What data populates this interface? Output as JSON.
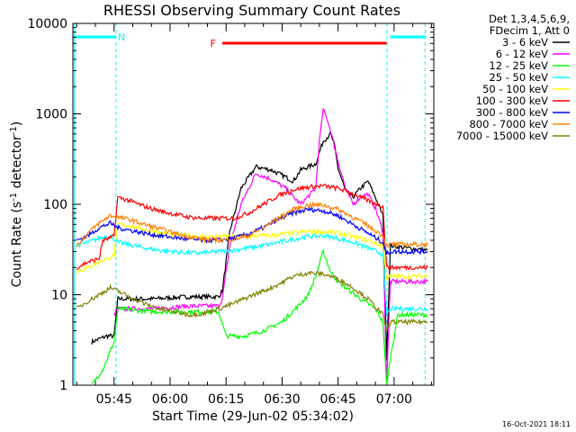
{
  "chart_data": {
    "type": "line",
    "title": "RHESSI Observing Summary Count Rates",
    "xlabel": "Start Time (29-Jun-02 05:34:02)",
    "ylabel_main": "Count Rate (s",
    "ylabel_sup1": "-1",
    "ylabel_mid": " detector",
    "ylabel_sup2": "-1",
    "ylabel_end": ")",
    "yscale": "log",
    "ylim": [
      1,
      10000
    ],
    "xlim_minutes": [
      -1.03,
      95.63
    ],
    "x_minutes_unit": "minutes after 05:35",
    "x_ticks": [
      {
        "label": "05:45",
        "t": 10
      },
      {
        "label": "06:00",
        "t": 25
      },
      {
        "label": "06:15",
        "t": 40
      },
      {
        "label": "06:30",
        "t": 55
      },
      {
        "label": "06:45",
        "t": 70
      },
      {
        "label": "07:00",
        "t": 85
      }
    ],
    "y_ticks": [
      {
        "label": "1",
        "v": 1
      },
      {
        "label": "10",
        "v": 10
      },
      {
        "label": "100",
        "v": 100
      },
      {
        "label": "1000",
        "v": 1000
      },
      {
        "label": "10000",
        "v": 10000
      }
    ],
    "legend_header": [
      "Det 1,3,4,5,6,9,",
      "FDecim 1, Att 0"
    ],
    "series": [
      {
        "name": "3 - 6 keV",
        "color": "#000000",
        "x": [
          4,
          8,
          10,
          11,
          20,
          30,
          38,
          39,
          41,
          44,
          48,
          52,
          56,
          58,
          60,
          64,
          66,
          68,
          69,
          70,
          72,
          74,
          76,
          78,
          80,
          82,
          83,
          84,
          88,
          94
        ],
        "y": [
          3,
          3.5,
          3.5,
          9,
          9,
          9.5,
          9.5,
          11,
          50,
          150,
          260,
          240,
          200,
          180,
          240,
          280,
          500,
          600,
          450,
          250,
          140,
          120,
          150,
          180,
          120,
          75,
          2,
          35,
          33,
          31
        ]
      },
      {
        "name": "6 - 12 keV",
        "color": "#ff00ff",
        "x": [
          10,
          11,
          20,
          30,
          38,
          39,
          41,
          44,
          48,
          52,
          56,
          58,
          60,
          64,
          65,
          66,
          67,
          68,
          70,
          72,
          74,
          76,
          78,
          80,
          82,
          83,
          84,
          88,
          94
        ],
        "y": [
          6,
          7,
          7,
          7.5,
          7.5,
          9,
          35,
          100,
          220,
          190,
          150,
          120,
          100,
          150,
          500,
          1100,
          900,
          650,
          300,
          150,
          100,
          120,
          130,
          90,
          50,
          1,
          14,
          14,
          14
        ]
      },
      {
        "name": "12 - 25 keV",
        "color": "#00ff00",
        "x": [
          4,
          7,
          10,
          11,
          20,
          30,
          38,
          40,
          45,
          50,
          55,
          60,
          62,
          64,
          66,
          68,
          70,
          72,
          76,
          80,
          82,
          83,
          84,
          86,
          88,
          94
        ],
        "y": [
          1,
          1.5,
          3,
          7,
          6.5,
          6.5,
          6.5,
          3.5,
          3.5,
          4,
          5,
          8,
          10,
          16,
          30,
          18,
          14,
          12,
          9,
          7,
          5,
          1,
          2,
          6,
          6,
          6
        ]
      },
      {
        "name": "25 - 50 keV",
        "color": "#00ffff",
        "x": [
          0,
          3,
          6,
          9,
          11,
          14,
          18,
          22,
          26,
          30,
          34,
          38,
          42,
          46,
          50,
          54,
          58,
          62,
          66,
          70,
          74,
          78,
          82,
          83,
          84,
          88,
          94
        ],
        "y": [
          35,
          38,
          42,
          45,
          38,
          36,
          33,
          31,
          30,
          29,
          29,
          30,
          31,
          33,
          35,
          38,
          41,
          44,
          45,
          42,
          38,
          33,
          28,
          6,
          7,
          7,
          7
        ]
      },
      {
        "name": "50 - 100 keV",
        "color": "#ffff00",
        "x": [
          0,
          3,
          6,
          9,
          10,
          11,
          14,
          18,
          22,
          26,
          30,
          34,
          38,
          42,
          46,
          50,
          54,
          58,
          62,
          66,
          70,
          74,
          78,
          82,
          83,
          84,
          88,
          94
        ],
        "y": [
          18,
          20,
          23,
          26,
          27,
          60,
          58,
          53,
          49,
          46,
          45,
          44,
          44,
          44,
          44,
          45,
          46,
          48,
          50,
          50,
          48,
          44,
          40,
          35,
          15,
          16,
          16,
          16
        ]
      },
      {
        "name": "100 - 300 keV",
        "color": "#ff0000",
        "x": [
          0,
          3,
          6,
          7,
          9,
          10,
          11,
          14,
          18,
          22,
          26,
          30,
          34,
          38,
          42,
          46,
          50,
          54,
          58,
          62,
          66,
          70,
          74,
          78,
          82,
          83,
          84,
          88,
          94
        ],
        "y": [
          20,
          23,
          25,
          40,
          42,
          45,
          120,
          110,
          95,
          85,
          78,
          72,
          70,
          70,
          70,
          80,
          100,
          125,
          145,
          155,
          160,
          150,
          130,
          110,
          95,
          20,
          20,
          20,
          20
        ]
      },
      {
        "name": "300 - 800 keV",
        "color": "#0000ff",
        "x": [
          0,
          3,
          6,
          9,
          11,
          14,
          18,
          22,
          26,
          30,
          34,
          38,
          42,
          46,
          50,
          54,
          58,
          62,
          66,
          70,
          74,
          78,
          82,
          83,
          84,
          88,
          94
        ],
        "y": [
          40,
          45,
          55,
          62,
          55,
          52,
          48,
          45,
          43,
          41,
          40,
          40,
          42,
          47,
          55,
          68,
          80,
          88,
          85,
          75,
          60,
          48,
          38,
          28,
          30,
          30,
          30
        ]
      },
      {
        "name": "800 - 7000 keV",
        "color": "#ff8000",
        "x": [
          0,
          3,
          6,
          9,
          11,
          14,
          18,
          22,
          26,
          30,
          34,
          38,
          42,
          46,
          50,
          54,
          58,
          62,
          66,
          70,
          74,
          78,
          82,
          83,
          84,
          88,
          94
        ],
        "y": [
          35,
          48,
          62,
          75,
          72,
          68,
          60,
          54,
          48,
          44,
          41,
          40,
          41,
          45,
          55,
          70,
          88,
          98,
          98,
          88,
          72,
          58,
          45,
          35,
          36,
          36,
          36
        ]
      },
      {
        "name": "7000 - 15000 keV",
        "color": "#808000",
        "x": [
          0,
          3,
          6,
          9,
          11,
          14,
          18,
          22,
          26,
          30,
          34,
          38,
          42,
          46,
          50,
          54,
          58,
          62,
          66,
          70,
          74,
          78,
          82,
          83,
          84,
          88,
          94
        ],
        "y": [
          7,
          8.5,
          10,
          12,
          11,
          9.5,
          8,
          7,
          6.5,
          6,
          6.2,
          7,
          8,
          9.5,
          11,
          13,
          16,
          17.5,
          17,
          15,
          12,
          9,
          6,
          4,
          5,
          5,
          5
        ]
      }
    ],
    "flags": [
      {
        "label": "N",
        "color": "#00ffff",
        "segments": [
          [
            -1.03,
            10.5
          ],
          [
            84,
            93.3
          ]
        ],
        "label_at": 12
      },
      {
        "label": "F",
        "color": "#ff0000",
        "segments": [
          [
            39,
            83
          ]
        ],
        "label_at": 36.5
      }
    ],
    "night_boundaries": [
      -0.6,
      10.5,
      83.1,
      93.3
    ],
    "timestamp": "16-Oct-2021 18:11"
  }
}
